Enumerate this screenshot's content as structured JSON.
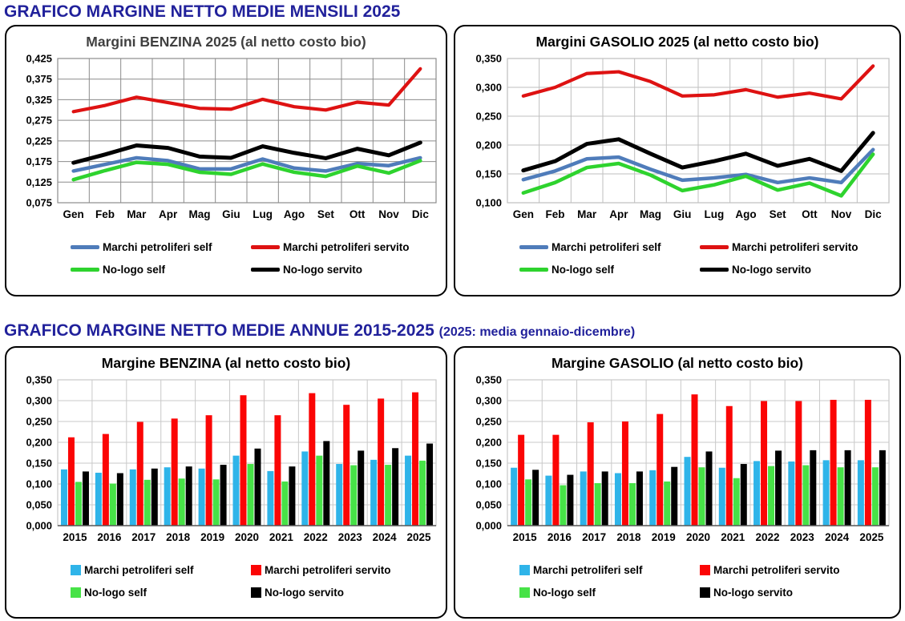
{
  "page": {
    "header_monthly": "GRAFICO MARGINE NETTO MEDIE MENSILI 2025",
    "header_annual": "GRAFICO MARGINE NETTO MEDIE ANNUE 2015-2025",
    "header_annual_note": "(2025: media gennaio-dicembre)"
  },
  "colors": {
    "header_navy": "#21219B",
    "line_blue": "#4F7CBA",
    "line_red": "#DE1212",
    "line_green": "#2ED32E",
    "line_black": "#000000",
    "bar_blue": "#2FB4E9",
    "bar_red": "#FB0505",
    "bar_green": "#47E247",
    "bar_black": "#000000"
  },
  "chart_data": [
    {
      "type": "line",
      "title": "Margini BENZINA 2025 (al netto costo bio)",
      "title_color": "#404040",
      "categories": [
        "Gen",
        "Feb",
        "Mar",
        "Apr",
        "Mag",
        "Giu",
        "Lug",
        "Ago",
        "Set",
        "Ott",
        "Nov",
        "Dic"
      ],
      "ylim": [
        0.075,
        0.425
      ],
      "ytick_step": 0.05,
      "grid_color": "#8C8C8C",
      "legend_position": "bottom",
      "series": [
        {
          "name": "Marchi petroliferi self",
          "color": "#4F7CBA",
          "stroke_width": 4.5,
          "values": [
            0.152,
            0.168,
            0.184,
            0.177,
            0.157,
            0.157,
            0.181,
            0.159,
            0.152,
            0.17,
            0.165,
            0.184
          ]
        },
        {
          "name": "Marchi petroliferi servito",
          "color": "#DE1212",
          "stroke_width": 4.2,
          "values": [
            0.296,
            0.311,
            0.331,
            0.318,
            0.304,
            0.302,
            0.326,
            0.308,
            0.3,
            0.319,
            0.312,
            0.4
          ]
        },
        {
          "name": "No-logo self",
          "color": "#2ED32E",
          "stroke_width": 4.5,
          "values": [
            0.131,
            0.153,
            0.173,
            0.168,
            0.149,
            0.144,
            0.169,
            0.149,
            0.139,
            0.164,
            0.147,
            0.177
          ]
        },
        {
          "name": "No-logo servito",
          "color": "#000000",
          "stroke_width": 5,
          "values": [
            0.172,
            0.192,
            0.214,
            0.208,
            0.187,
            0.184,
            0.212,
            0.196,
            0.183,
            0.206,
            0.19,
            0.221
          ]
        }
      ]
    },
    {
      "type": "line",
      "title": "Margini GASOLIO 2025 (al netto costo bio)",
      "title_color": "#000000",
      "categories": [
        "Gen",
        "Feb",
        "Mar",
        "Apr",
        "Mag",
        "Giu",
        "Lug",
        "Ago",
        "Set",
        "Ott",
        "Nov",
        "Dic"
      ],
      "ylim": [
        0.1,
        0.35
      ],
      "ytick_step": 0.05,
      "grid_color": "#BFBFBF",
      "legend_position": "bottom",
      "series": [
        {
          "name": "Marchi petroliferi self",
          "color": "#4F7CBA",
          "stroke_width": 4.5,
          "values": [
            0.14,
            0.155,
            0.176,
            0.179,
            0.158,
            0.139,
            0.143,
            0.149,
            0.135,
            0.143,
            0.135,
            0.192
          ]
        },
        {
          "name": "Marchi petroliferi servito",
          "color": "#DE1212",
          "stroke_width": 4.2,
          "values": [
            0.285,
            0.3,
            0.324,
            0.327,
            0.31,
            0.285,
            0.287,
            0.296,
            0.283,
            0.29,
            0.28,
            0.337
          ]
        },
        {
          "name": "No-logo self",
          "color": "#2ED32E",
          "stroke_width": 4.5,
          "values": [
            0.117,
            0.135,
            0.161,
            0.168,
            0.148,
            0.121,
            0.131,
            0.146,
            0.122,
            0.134,
            0.112,
            0.184
          ]
        },
        {
          "name": "No-logo servito",
          "color": "#000000",
          "stroke_width": 5,
          "values": [
            0.156,
            0.172,
            0.202,
            0.21,
            0.185,
            0.161,
            0.172,
            0.185,
            0.164,
            0.176,
            0.155,
            0.221
          ]
        }
      ]
    },
    {
      "type": "bar",
      "title": "Margine BENZINA (al netto costo bio)",
      "title_color": "#000000",
      "categories": [
        "2015",
        "2016",
        "2017",
        "2018",
        "2019",
        "2020",
        "2021",
        "2022",
        "2023",
        "2024",
        "2025"
      ],
      "ylim": [
        0.0,
        0.35
      ],
      "ytick_step": 0.05,
      "grid_color": "#C9C9C9",
      "legend_position": "bottom",
      "series": [
        {
          "name": "Marchi petroliferi self",
          "color": "#2FB4E9",
          "values": [
            0.135,
            0.127,
            0.135,
            0.14,
            0.137,
            0.168,
            0.131,
            0.178,
            0.148,
            0.158,
            0.168
          ]
        },
        {
          "name": "Marchi petroliferi servito",
          "color": "#FB0505",
          "values": [
            0.212,
            0.22,
            0.249,
            0.257,
            0.265,
            0.313,
            0.265,
            0.318,
            0.29,
            0.305,
            0.32
          ]
        },
        {
          "name": "No-logo self",
          "color": "#47E247",
          "values": [
            0.105,
            0.101,
            0.11,
            0.113,
            0.111,
            0.148,
            0.106,
            0.168,
            0.145,
            0.146,
            0.156
          ]
        },
        {
          "name": "No-logo servito",
          "color": "#000000",
          "values": [
            0.13,
            0.126,
            0.137,
            0.142,
            0.146,
            0.185,
            0.142,
            0.203,
            0.18,
            0.186,
            0.197
          ]
        }
      ]
    },
    {
      "type": "bar",
      "title": "Margine GASOLIO (al netto costo bio)",
      "title_color": "#000000",
      "categories": [
        "2015",
        "2016",
        "2017",
        "2018",
        "2019",
        "2020",
        "2021",
        "2022",
        "2023",
        "2024",
        "2025"
      ],
      "ylim": [
        0.0,
        0.35
      ],
      "ytick_step": 0.05,
      "grid_color": "#C9C9C9",
      "legend_position": "bottom",
      "series": [
        {
          "name": "Marchi petroliferi self",
          "color": "#2FB4E9",
          "values": [
            0.139,
            0.12,
            0.13,
            0.126,
            0.133,
            0.165,
            0.139,
            0.155,
            0.154,
            0.157,
            0.157
          ]
        },
        {
          "name": "Marchi petroliferi servito",
          "color": "#FB0505",
          "values": [
            0.218,
            0.218,
            0.248,
            0.25,
            0.268,
            0.315,
            0.287,
            0.299,
            0.299,
            0.302,
            0.302
          ]
        },
        {
          "name": "No-logo self",
          "color": "#47E247",
          "values": [
            0.111,
            0.097,
            0.102,
            0.102,
            0.106,
            0.14,
            0.114,
            0.143,
            0.145,
            0.14,
            0.14
          ]
        },
        {
          "name": "No-logo servito",
          "color": "#000000",
          "values": [
            0.134,
            0.122,
            0.13,
            0.13,
            0.141,
            0.178,
            0.148,
            0.18,
            0.181,
            0.181,
            0.181
          ]
        }
      ]
    }
  ]
}
